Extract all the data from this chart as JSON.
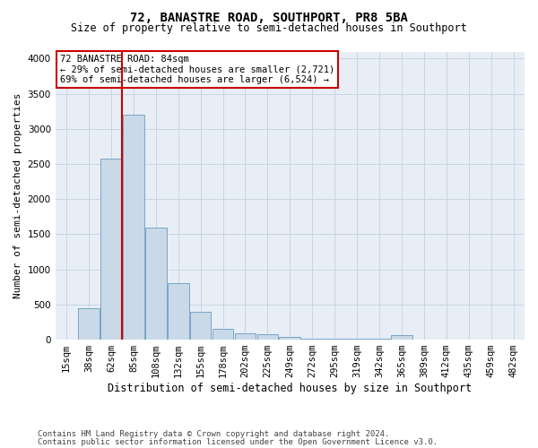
{
  "title1": "72, BANASTRE ROAD, SOUTHPORT, PR8 5BA",
  "title2": "Size of property relative to semi-detached houses in Southport",
  "xlabel": "Distribution of semi-detached houses by size in Southport",
  "ylabel": "Number of semi-detached properties",
  "annotation_title": "72 BANASTRE ROAD: 84sqm",
  "annotation_line1": "← 29% of semi-detached houses are smaller (2,721)",
  "annotation_line2": "69% of semi-detached houses are larger (6,524) →",
  "footer1": "Contains HM Land Registry data © Crown copyright and database right 2024.",
  "footer2": "Contains public sector information licensed under the Open Government Licence v3.0.",
  "categories": [
    "15sqm",
    "38sqm",
    "62sqm",
    "85sqm",
    "108sqm",
    "132sqm",
    "155sqm",
    "178sqm",
    "202sqm",
    "225sqm",
    "249sqm",
    "272sqm",
    "295sqm",
    "319sqm",
    "342sqm",
    "365sqm",
    "389sqm",
    "412sqm",
    "435sqm",
    "459sqm",
    "482sqm"
  ],
  "values": [
    5,
    450,
    2580,
    3200,
    1600,
    800,
    400,
    150,
    90,
    80,
    40,
    10,
    10,
    10,
    10,
    60,
    5,
    5,
    5,
    5,
    5
  ],
  "bar_color": "#c9d9e8",
  "bar_edge_color": "#6a9cbf",
  "vline_color": "#cc0000",
  "vline_x_index": 3,
  "annotation_box_facecolor": "#ffffff",
  "annotation_box_edgecolor": "#cc0000",
  "grid_color": "#c8d4e4",
  "background_color": "#e8eef6",
  "ylim": [
    0,
    4100
  ],
  "yticks": [
    0,
    500,
    1000,
    1500,
    2000,
    2500,
    3000,
    3500,
    4000
  ],
  "title1_fontsize": 10,
  "title2_fontsize": 8.5,
  "ylabel_fontsize": 8,
  "xlabel_fontsize": 8.5,
  "tick_fontsize": 7.5,
  "footer_fontsize": 6.5,
  "annotation_fontsize": 7.5
}
